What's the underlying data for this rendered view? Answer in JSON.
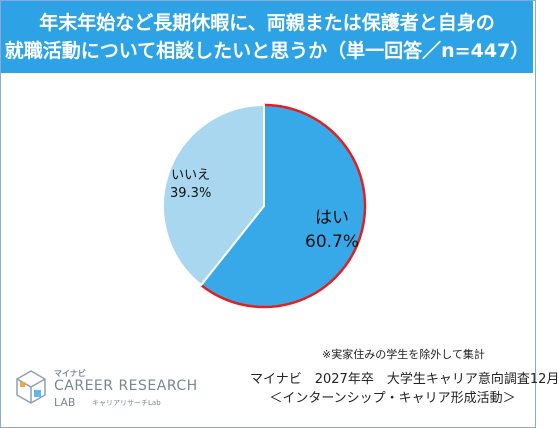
{
  "title": {
    "line1": "年末年始など長期休暇に、両親または保護者と自身の",
    "line2": "就職活動について相談したいと思うか（単一回答／n=447）"
  },
  "chart_data": {
    "type": "pie",
    "slices": [
      {
        "label": "はい",
        "value": 60.7,
        "display": "60.7%",
        "color": "#38a9e8"
      },
      {
        "label": "いいえ",
        "value": 39.3,
        "display": "39.3%",
        "color": "#a9d7ef"
      }
    ],
    "highlight_outline_color": "#e02020"
  },
  "note": "※実家住みの学生を除外して集計",
  "source": {
    "line1": "マイナビ　2027年卒　大学生キャリア意向調査12月",
    "line2": "＜インターンシップ・キャリア形成活動＞"
  },
  "logo": {
    "brand": "マイナビ",
    "main": "CAREER RESEARCH",
    "sub": "LAB",
    "sub_kana": "キャリアリサーチLab"
  }
}
